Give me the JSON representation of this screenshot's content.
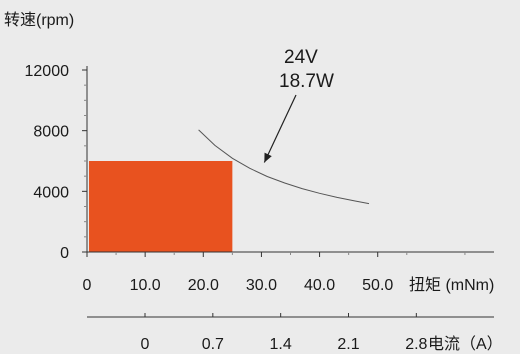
{
  "chart_data": {
    "type": "area",
    "ylabel": "转速(rpm)",
    "xlabel": "扭矩 (mNm)",
    "x2label": "电流（A）",
    "ylim": [
      0,
      12000
    ],
    "xlim": [
      0,
      70
    ],
    "x2lim": [
      0,
      4.2
    ],
    "yticks": [
      0,
      4000,
      8000,
      12000
    ],
    "xticks": [
      {
        "value": 0,
        "label": "0"
      },
      {
        "value": 10,
        "label": "10.0"
      },
      {
        "value": 20,
        "label": "20.0"
      },
      {
        "value": 30,
        "label": "30.0"
      },
      {
        "value": 40,
        "label": "40.0"
      },
      {
        "value": 50,
        "label": "50.0"
      }
    ],
    "x2ticks": [
      {
        "value": 0,
        "label": "0"
      },
      {
        "value": 0.7,
        "label": "0.7"
      },
      {
        "value": 1.4,
        "label": "1.4"
      },
      {
        "value": 2.1,
        "label": "2.1"
      },
      {
        "value": 2.8,
        "label": "2.8"
      }
    ],
    "operating_region": {
      "x": [
        0,
        25
      ],
      "y": [
        0,
        6000
      ],
      "color": "#e8521f"
    },
    "power_curve": {
      "x": [
        19.2,
        22,
        25,
        28,
        31,
        34,
        37,
        40,
        43,
        46,
        48.5
      ],
      "y": [
        8050,
        7030,
        6180,
        5520,
        4980,
        4550,
        4180,
        3870,
        3600,
        3370,
        3190
      ],
      "color": "#555555"
    },
    "annotation": {
      "lines": [
        "24V",
        "18.7W"
      ],
      "points_to": {
        "x": 30.5,
        "y": 5900
      }
    }
  }
}
